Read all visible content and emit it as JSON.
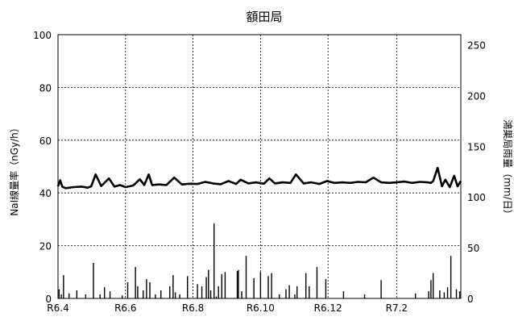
{
  "chart_data": {
    "type": "line",
    "title": "額田局",
    "ylabel_left": "NaI線量率（nGy/h）",
    "ylabel_right": "鴻巣局雨量（mm/日）",
    "x_ticks": [
      "R6.4",
      "R6.6",
      "R6.8",
      "R6.10",
      "R6.12",
      "R7.2"
    ],
    "x_domain": [
      "2024-04-01",
      "2025-03-31"
    ],
    "y_left": {
      "min": 0,
      "max": 100,
      "ticks": [
        0,
        20,
        40,
        60,
        80,
        100
      ]
    },
    "y_right": {
      "min": 0,
      "max": 260,
      "ticks": [
        0,
        50,
        100,
        150,
        200,
        250
      ]
    },
    "grid": {
      "horizontal": true,
      "vertical": true,
      "style": "dashed"
    },
    "series": [
      {
        "axis": "left",
        "kind": "line",
        "color": "#000000",
        "x": [
          "2024-04-01",
          "2024-04-03",
          "2024-04-05",
          "2024-04-08",
          "2024-04-15",
          "2024-04-22",
          "2024-04-28",
          "2024-05-01",
          "2024-05-05",
          "2024-05-10",
          "2024-05-17",
          "2024-05-22",
          "2024-05-27",
          "2024-06-01",
          "2024-06-08",
          "2024-06-14",
          "2024-06-18",
          "2024-06-22",
          "2024-06-25",
          "2024-07-01",
          "2024-07-08",
          "2024-07-15",
          "2024-07-22",
          "2024-07-29",
          "2024-08-05",
          "2024-08-12",
          "2024-08-19",
          "2024-08-26",
          "2024-09-02",
          "2024-09-09",
          "2024-09-13",
          "2024-09-20",
          "2024-09-27",
          "2024-10-04",
          "2024-10-09",
          "2024-10-14",
          "2024-10-21",
          "2024-10-28",
          "2024-11-02",
          "2024-11-09",
          "2024-11-16",
          "2024-11-23",
          "2024-11-30",
          "2024-12-07",
          "2024-12-14",
          "2024-12-21",
          "2024-12-28",
          "2025-01-04",
          "2025-01-11",
          "2025-01-18",
          "2025-01-25",
          "2025-02-01",
          "2025-02-08",
          "2025-02-15",
          "2025-02-22",
          "2025-03-01",
          "2025-03-04",
          "2025-03-06",
          "2025-03-10",
          "2025-03-14",
          "2025-03-17",
          "2025-03-21",
          "2025-03-25",
          "2025-03-28",
          "2025-03-31"
        ],
        "values": [
          42.5,
          44.8,
          42.3,
          41.8,
          42.2,
          42.4,
          42.0,
          42.5,
          47.0,
          42.6,
          45.5,
          42.4,
          43.0,
          42.2,
          42.8,
          45.2,
          43.0,
          47.0,
          43.0,
          43.2,
          43.0,
          45.8,
          43.2,
          43.5,
          43.4,
          44.2,
          43.6,
          43.3,
          44.5,
          43.4,
          45.0,
          43.6,
          44.0,
          43.5,
          45.5,
          43.6,
          44.0,
          43.8,
          47.0,
          43.6,
          44.0,
          43.4,
          44.5,
          43.8,
          44.0,
          43.8,
          44.2,
          44.0,
          45.8,
          44.0,
          43.8,
          44.0,
          44.3,
          43.8,
          44.2,
          44.0,
          43.8,
          44.5,
          49.5,
          42.5,
          45.0,
          42.2,
          46.5,
          42.5,
          44.5
        ]
      },
      {
        "axis": "right",
        "kind": "bar",
        "color": "#000000",
        "x": [
          "2024-04-02",
          "2024-04-04",
          "2024-04-06",
          "2024-04-11",
          "2024-04-18",
          "2024-04-26",
          "2024-05-03",
          "2024-05-09",
          "2024-05-13",
          "2024-05-18",
          "2024-05-29",
          "2024-06-03",
          "2024-06-10",
          "2024-06-12",
          "2024-06-17",
          "2024-06-20",
          "2024-06-23",
          "2024-06-28",
          "2024-07-03",
          "2024-07-11",
          "2024-07-14",
          "2024-07-16",
          "2024-07-20",
          "2024-07-27",
          "2024-08-05",
          "2024-08-09",
          "2024-08-13",
          "2024-08-15",
          "2024-08-17",
          "2024-08-20",
          "2024-08-22",
          "2024-08-24",
          "2024-08-27",
          "2024-08-30",
          "2024-09-10",
          "2024-09-11",
          "2024-09-14",
          "2024-09-18",
          "2024-09-25",
          "2024-10-01",
          "2024-10-08",
          "2024-10-11",
          "2024-10-18",
          "2024-10-24",
          "2024-10-27",
          "2024-11-01",
          "2024-11-03",
          "2024-11-11",
          "2024-11-14",
          "2024-11-21",
          "2024-11-29",
          "2024-12-15",
          "2025-01-03",
          "2025-01-18",
          "2025-02-18",
          "2025-03-02",
          "2025-03-04",
          "2025-03-06",
          "2025-03-12",
          "2025-03-16",
          "2025-03-19",
          "2025-03-22",
          "2025-03-27",
          "2025-03-30"
        ],
        "values": [
          9,
          4,
          23,
          5,
          8,
          4,
          35,
          4,
          11,
          7,
          3,
          16,
          31,
          12,
          8,
          19,
          16,
          4,
          8,
          12,
          23,
          6,
          4,
          22,
          14,
          12,
          21,
          28,
          8,
          74,
          2,
          12,
          24,
          26,
          27,
          28,
          7,
          42,
          20,
          26,
          22,
          25,
          4,
          9,
          13,
          4,
          12,
          25,
          12,
          31,
          19,
          7,
          4,
          18,
          5,
          7,
          18,
          25,
          8,
          6,
          11,
          42,
          9,
          7
        ]
      }
    ]
  }
}
